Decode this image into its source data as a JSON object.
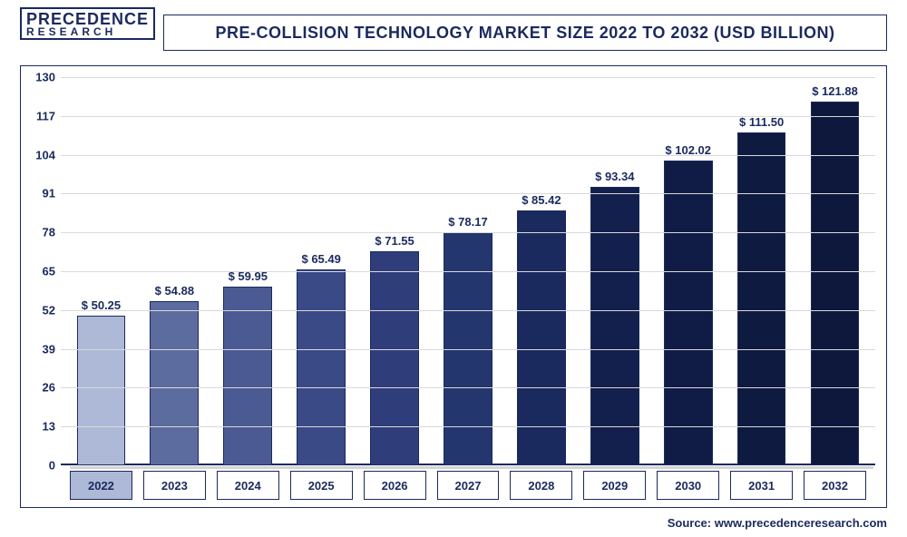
{
  "logo": {
    "line1": "PRECEDENCE",
    "line2": "RESEARCH"
  },
  "title": "PRE-COLLISION TECHNOLOGY MARKET SIZE 2022 TO 2032 (USD BILLION)",
  "source": "Source: www.precedenceresearch.com",
  "chart": {
    "type": "bar",
    "background_color": "#ffffff",
    "grid_color": "#d9d9d9",
    "border_color": "#1a2a5e",
    "text_color": "#1a2a5e",
    "title_fontsize": 18,
    "label_fontsize": 13,
    "ylim": [
      0,
      130
    ],
    "ytick_step": 13,
    "yticks": [
      0,
      13,
      26,
      39,
      52,
      65,
      78,
      91,
      104,
      117,
      130
    ],
    "categories": [
      "2022",
      "2023",
      "2024",
      "2025",
      "2026",
      "2027",
      "2028",
      "2029",
      "2030",
      "2031",
      "2032"
    ],
    "values": [
      50.25,
      54.88,
      59.95,
      65.49,
      71.55,
      78.17,
      85.42,
      93.34,
      102.02,
      111.5,
      121.88
    ],
    "value_prefix": "$ ",
    "bar_colors": [
      "#adb9d6",
      "#5d6c9f",
      "#4b5a93",
      "#3a4a87",
      "#2f3e7a",
      "#24366e",
      "#1a2a5e",
      "#131f4c",
      "#111c46",
      "#0f1a40",
      "#0d183c"
    ],
    "x_label_highlight_bg": "#adb9d6",
    "x_label_highlight_index": 0,
    "bar_width": 0.78
  }
}
